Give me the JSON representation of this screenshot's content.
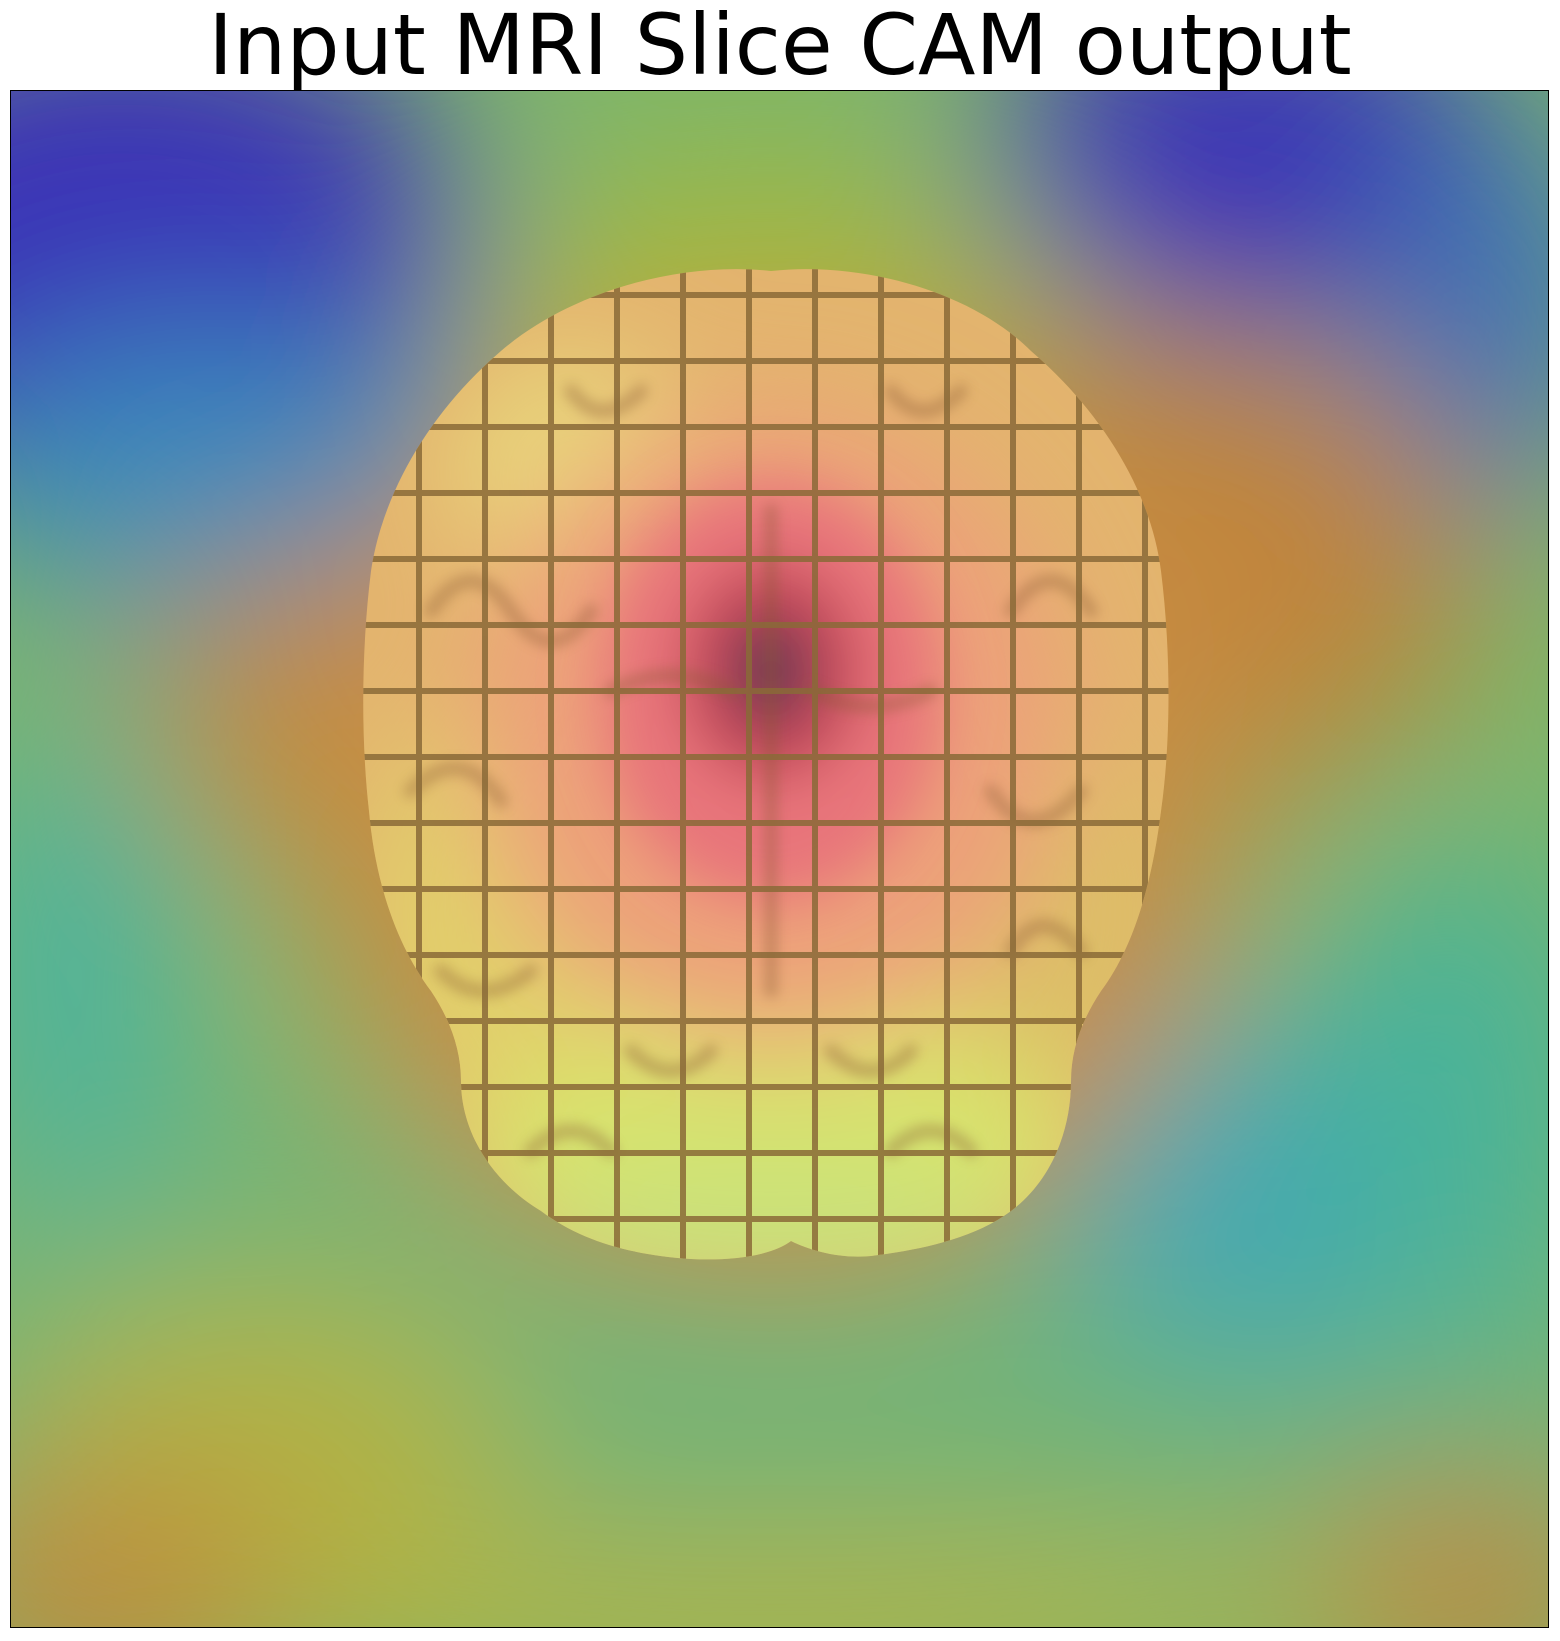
{
  "figure": {
    "title": "Input MRI Slice CAM output"
  },
  "image": {
    "subject": "axial brain MRI slice with class activation map heatmap overlay",
    "colormap": "jet",
    "colors": {
      "low": "#3a33b7",
      "mid_low": "#46b6a8",
      "mid": "#a9b83d",
      "mid_high": "#c07a3a",
      "high": "#c0404a",
      "peak": "#5a3050",
      "grid_line": "#8a6a38"
    }
  }
}
